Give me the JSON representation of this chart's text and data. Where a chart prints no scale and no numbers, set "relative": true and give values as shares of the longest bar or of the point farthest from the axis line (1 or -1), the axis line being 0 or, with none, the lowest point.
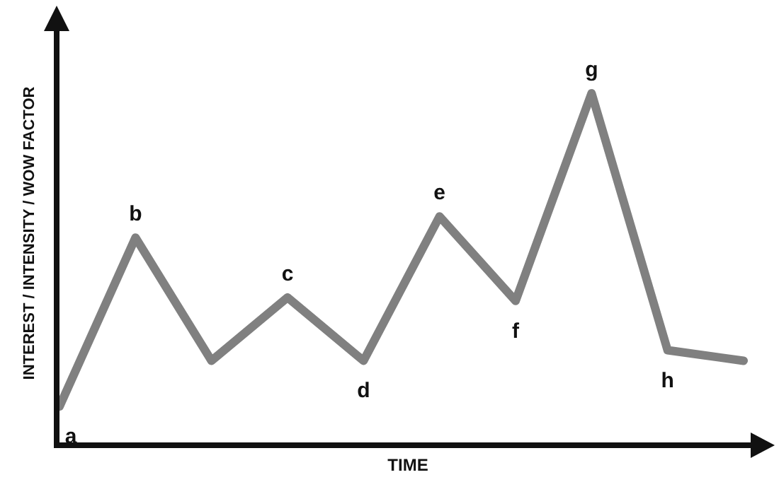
{
  "chart_data": {
    "type": "line",
    "relative": true,
    "xlabel": "TIME",
    "ylabel": "INTEREST / INTENSITY / WOW FACTOR",
    "categories": [
      "a",
      "b",
      null,
      "c",
      "d",
      "e",
      "f",
      "g",
      "h",
      null
    ],
    "series": [
      {
        "color": "#808080",
        "values": [
          0.11,
          0.59,
          0.24,
          0.42,
          0.24,
          0.65,
          0.41,
          1,
          0.27,
          0.24
        ]
      }
    ],
    "marker": "none",
    "line_style": "solid"
  }
}
